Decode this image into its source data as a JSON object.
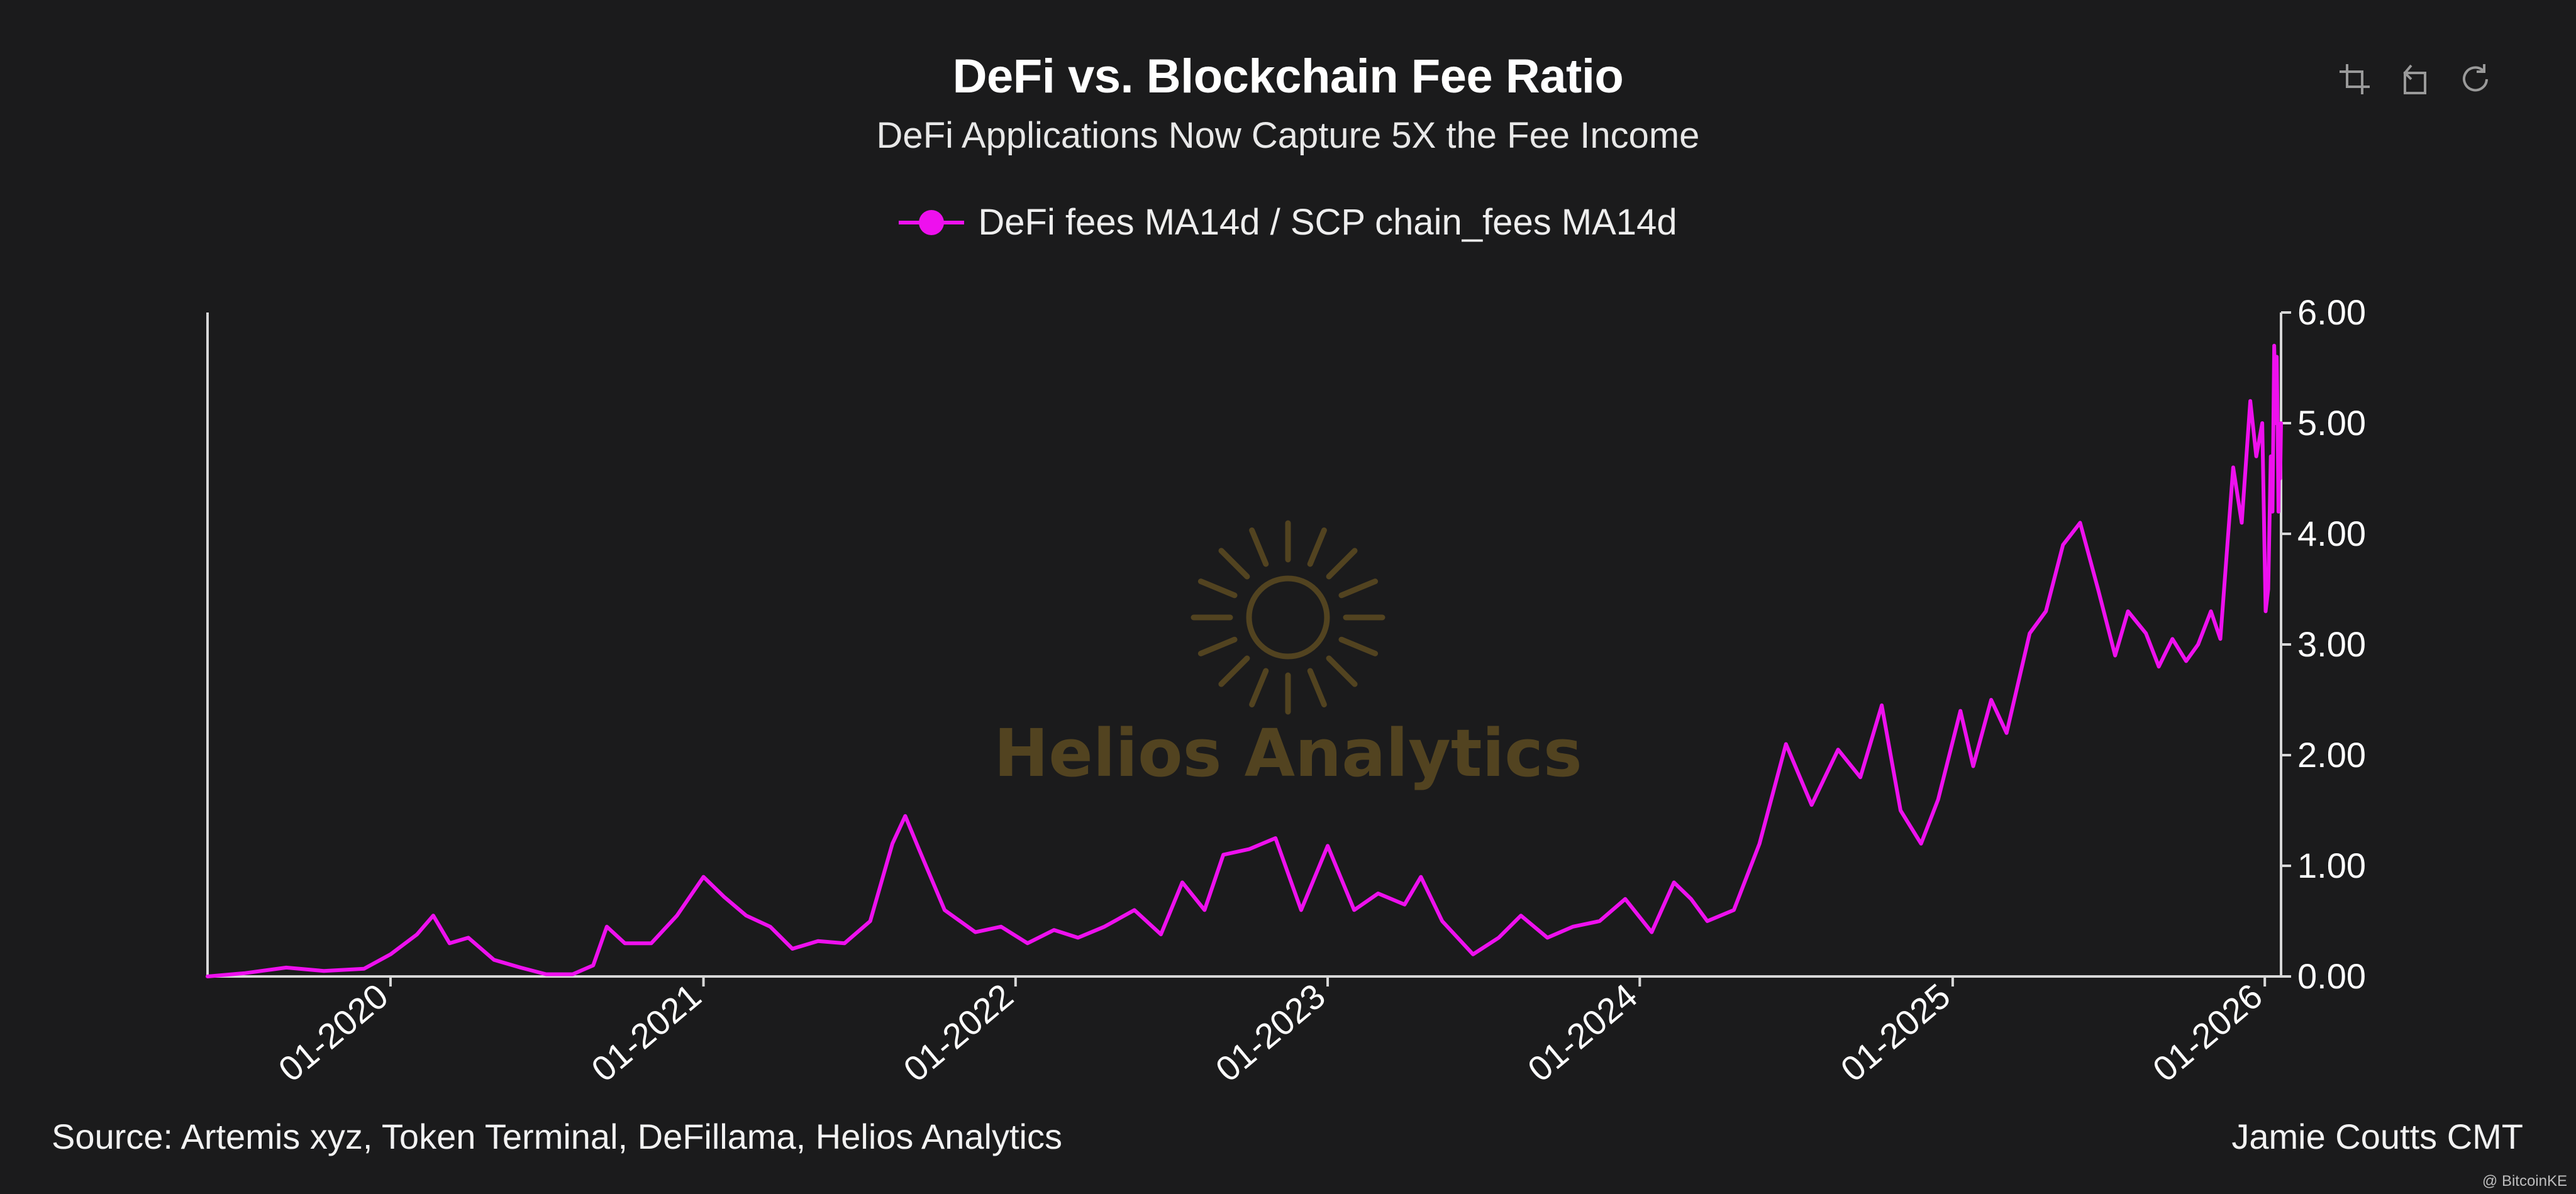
{
  "chart_data": {
    "type": "line",
    "title": "DeFi vs. Blockchain Fee Ratio",
    "subtitle": "DeFi Applications Now Capture 5X the Fee Income",
    "xlabel": "",
    "ylabel": "",
    "ylim": [
      0,
      6
    ],
    "yticks": [
      "0.00",
      "1.00",
      "2.00",
      "3.00",
      "4.00",
      "5.00",
      "6.00"
    ],
    "y_axis_position": "right",
    "xticks": [
      "01-2020",
      "01-2021",
      "01-2022",
      "01-2023",
      "01-2024",
      "01-2025",
      "01-2026"
    ],
    "xlim": [
      "2019-06-01",
      "2026-01-20"
    ],
    "legend": "top-center",
    "grid": false,
    "series": [
      {
        "name": "DeFi fees MA14d / SCP chain_fees MA14d",
        "color": "#ee10ee",
        "points": [
          [
            "2019-06-01",
            0.0
          ],
          [
            "2019-07-15",
            0.03
          ],
          [
            "2019-09-01",
            0.08
          ],
          [
            "2019-10-15",
            0.05
          ],
          [
            "2019-12-01",
            0.07
          ],
          [
            "2020-01-01",
            0.2
          ],
          [
            "2020-02-01",
            0.38
          ],
          [
            "2020-02-20",
            0.55
          ],
          [
            "2020-03-10",
            0.3
          ],
          [
            "2020-04-01",
            0.35
          ],
          [
            "2020-05-01",
            0.15
          ],
          [
            "2020-06-01",
            0.08
          ],
          [
            "2020-07-01",
            0.02
          ],
          [
            "2020-08-01",
            0.02
          ],
          [
            "2020-08-25",
            0.1
          ],
          [
            "2020-09-10",
            0.45
          ],
          [
            "2020-10-01",
            0.3
          ],
          [
            "2020-11-01",
            0.3
          ],
          [
            "2020-12-01",
            0.55
          ],
          [
            "2021-01-01",
            0.9
          ],
          [
            "2021-01-25",
            0.72
          ],
          [
            "2021-02-20",
            0.55
          ],
          [
            "2021-03-20",
            0.45
          ],
          [
            "2021-04-15",
            0.25
          ],
          [
            "2021-05-15",
            0.32
          ],
          [
            "2021-06-15",
            0.3
          ],
          [
            "2021-07-15",
            0.5
          ],
          [
            "2021-08-10",
            1.2
          ],
          [
            "2021-08-25",
            1.45
          ],
          [
            "2021-09-10",
            1.15
          ],
          [
            "2021-10-10",
            0.6
          ],
          [
            "2021-11-15",
            0.4
          ],
          [
            "2021-12-15",
            0.45
          ],
          [
            "2022-01-15",
            0.3
          ],
          [
            "2022-02-15",
            0.42
          ],
          [
            "2022-03-15",
            0.35
          ],
          [
            "2022-04-15",
            0.45
          ],
          [
            "2022-05-20",
            0.6
          ],
          [
            "2022-06-20",
            0.38
          ],
          [
            "2022-07-15",
            0.85
          ],
          [
            "2022-08-10",
            0.6
          ],
          [
            "2022-09-01",
            1.1
          ],
          [
            "2022-10-01",
            1.15
          ],
          [
            "2022-11-01",
            1.25
          ],
          [
            "2022-12-01",
            0.6
          ],
          [
            "2023-01-01",
            1.18
          ],
          [
            "2023-02-01",
            0.6
          ],
          [
            "2023-03-01",
            0.75
          ],
          [
            "2023-04-01",
            0.65
          ],
          [
            "2023-04-20",
            0.9
          ],
          [
            "2023-05-15",
            0.5
          ],
          [
            "2023-06-20",
            0.2
          ],
          [
            "2023-07-20",
            0.35
          ],
          [
            "2023-08-15",
            0.55
          ],
          [
            "2023-09-15",
            0.35
          ],
          [
            "2023-10-15",
            0.45
          ],
          [
            "2023-11-15",
            0.5
          ],
          [
            "2023-12-15",
            0.7
          ],
          [
            "2024-01-15",
            0.4
          ],
          [
            "2024-02-10",
            0.85
          ],
          [
            "2024-03-01",
            0.7
          ],
          [
            "2024-03-20",
            0.5
          ],
          [
            "2024-04-20",
            0.6
          ],
          [
            "2024-05-20",
            1.2
          ],
          [
            "2024-06-20",
            2.1
          ],
          [
            "2024-07-20",
            1.55
          ],
          [
            "2024-08-20",
            2.05
          ],
          [
            "2024-09-15",
            1.8
          ],
          [
            "2024-10-10",
            2.45
          ],
          [
            "2024-11-01",
            1.5
          ],
          [
            "2024-11-25",
            1.2
          ],
          [
            "2024-12-15",
            1.6
          ],
          [
            "2025-01-10",
            2.4
          ],
          [
            "2025-01-25",
            1.9
          ],
          [
            "2025-02-15",
            2.5
          ],
          [
            "2025-03-05",
            2.2
          ],
          [
            "2025-04-01",
            3.1
          ],
          [
            "2025-04-20",
            3.3
          ],
          [
            "2025-05-10",
            3.9
          ],
          [
            "2025-05-30",
            4.1
          ],
          [
            "2025-06-20",
            3.5
          ],
          [
            "2025-07-10",
            2.9
          ],
          [
            "2025-07-25",
            3.3
          ],
          [
            "2025-08-15",
            3.1
          ],
          [
            "2025-08-30",
            2.8
          ],
          [
            "2025-09-15",
            3.05
          ],
          [
            "2025-10-01",
            2.85
          ],
          [
            "2025-10-15",
            3.0
          ],
          [
            "2025-10-30",
            3.3
          ],
          [
            "2025-11-10",
            3.05
          ],
          [
            "2025-11-25",
            4.6
          ],
          [
            "2025-12-05",
            4.1
          ],
          [
            "2025-12-15",
            5.2
          ],
          [
            "2025-12-22",
            4.7
          ],
          [
            "2025-12-29",
            5.0
          ],
          [
            "2026-01-02",
            3.3
          ],
          [
            "2026-01-05",
            3.5
          ],
          [
            "2026-01-08",
            4.7
          ],
          [
            "2026-01-10",
            4.2
          ],
          [
            "2026-01-12",
            5.7
          ],
          [
            "2026-01-14",
            5.0
          ],
          [
            "2026-01-15",
            5.6
          ],
          [
            "2026-01-16",
            5.0
          ],
          [
            "2026-01-17",
            4.2
          ],
          [
            "2026-01-18",
            4.9
          ],
          [
            "2026-01-19",
            4.5
          ],
          [
            "2026-01-20",
            5.0
          ]
        ]
      }
    ]
  },
  "legend_label": "DeFi fees MA14d / SCP chain_fees MA14d",
  "watermark": {
    "text": "Helios Analytics",
    "color": "#524320"
  },
  "footer": {
    "source": "Source: Artemis xyz, Token Terminal, DeFillama, Helios Analytics",
    "author": "Jamie Coutts CMT",
    "credit": "@ BitcoinKE"
  },
  "toolbar": [
    {
      "name": "crop-tool-icon"
    },
    {
      "name": "undo-icon"
    },
    {
      "name": "refresh-icon"
    }
  ]
}
